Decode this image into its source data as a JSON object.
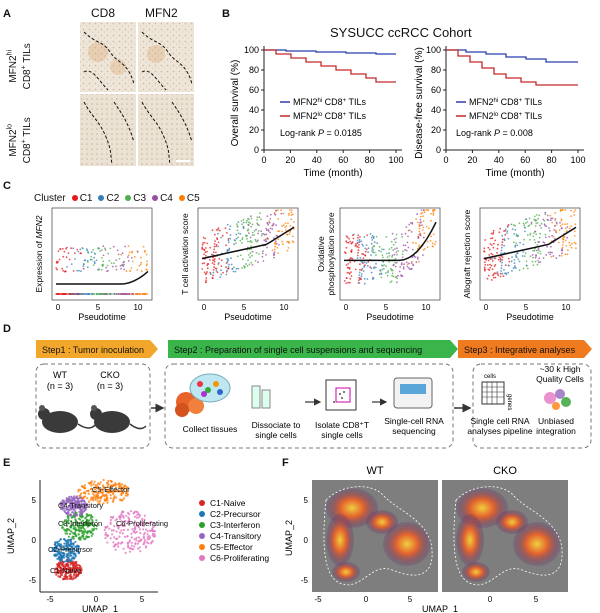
{
  "panels": {
    "A": "A",
    "B": "B",
    "C": "C",
    "D": "D",
    "E": "E",
    "F": "F"
  },
  "panel_a": {
    "col_labels": [
      "CD8",
      "MFN2"
    ],
    "row_hi_prefix": "MFN2",
    "row_hi_sup": "hi",
    "row_lo_prefix": "MFN2",
    "row_lo_sup": "lo",
    "row_suffix": "CD8",
    "row_suffix_sup": "+",
    "row_suffix_end": " TILs"
  },
  "panel_b": {
    "title": "SYSUCC ccRCC Cohort",
    "left": {
      "ylabel": "Overall survival (%)",
      "xlabel": "Time (month)",
      "legend_hi": "MFN2",
      "legend_hi_sup": "hi",
      "legend_lo": "MFN2",
      "legend_lo_sup": "lo",
      "legend_suffix": " CD8",
      "legend_suffix_sup": "+",
      "legend_end": " TILs",
      "pvalue_prefix": "Log-rank ",
      "pvalue_p": "P",
      "pvalue_val": " = 0.0185"
    },
    "right": {
      "ylabel": "Disease-free survival (%)",
      "xlabel": "Time (month)",
      "pvalue_prefix": "Log-rank ",
      "pvalue_p": "P",
      "pvalue_val": " = 0.008"
    },
    "xticks": [
      "0",
      "20",
      "40",
      "60",
      "80",
      "100"
    ],
    "yticks": [
      "0",
      "20",
      "40",
      "60",
      "80",
      "100"
    ]
  },
  "panel_c": {
    "legend_title": "Cluster",
    "clusters": [
      "C1",
      "C2",
      "C3",
      "C4",
      "C5"
    ],
    "cluster_colors": [
      "#e41a1c",
      "#377eb8",
      "#4daf4a",
      "#984ea3",
      "#ff7f00"
    ],
    "xlabel": "Pseudotime",
    "xticks": [
      "0",
      "5",
      "10"
    ],
    "plots": [
      {
        "ylabel_a": "Expression of ",
        "ylabel_b": "MFN2"
      },
      {
        "ylabel_a": "T cell activation score"
      },
      {
        "ylabel_a": "Oxidative",
        "ylabel_b": "phosphorylation score"
      },
      {
        "ylabel_a": "Allograft rejection score"
      }
    ]
  },
  "panel_d": {
    "step1": "Step1 : Tumor inoculation",
    "step2": "Step2 : Preparation of single cell suspensions and sequencing",
    "step3": "Step3 : Integrative analyses",
    "wt": "WT",
    "wt_n": "(n = 3)",
    "cko": "CKO",
    "cko_n": "(n = 3)",
    "collect": "Collect tissues",
    "dissociate": "Dissociate to single cells",
    "isolate": "Isolate CD8⁺T single cells",
    "sequencing": "Single-cell RNA sequencing",
    "cells": "cells",
    "genes": "genes",
    "pipeline": "Single cell RNA analyses pipeline",
    "quality": "~30 k High Quality Cells",
    "unbiased": "Unbiased integration"
  },
  "panel_e": {
    "xlabel": "UMAP_1",
    "ylabel": "UMAP_2",
    "xticks": [
      "-5",
      "0",
      "5"
    ],
    "yticks": [
      "-5",
      "0",
      "5"
    ],
    "cluster_labels": [
      "C1-Naive",
      "C2-Precursor",
      "C3-Interferon",
      "C4-Transitory",
      "C5-Effector",
      "C6-Proliferating"
    ],
    "cluster_colors": [
      "#d62728",
      "#1f77b4",
      "#2ca02c",
      "#9467bd",
      "#ff7f0e",
      "#e377c2"
    ],
    "legend": [
      "C1-Naive",
      "C2-Precursor",
      "C3-Interferon",
      "C4-Transitory",
      "C5-Effector",
      "C6-Proliferating"
    ]
  },
  "panel_f": {
    "wt": "WT",
    "cko": "CKO",
    "xlabel": "UMAP_1",
    "ylabel": "UMAP_2",
    "xticks": [
      "-5",
      "0",
      "5",
      "0",
      "5"
    ],
    "yticks": [
      "5",
      "0",
      "-5"
    ]
  }
}
